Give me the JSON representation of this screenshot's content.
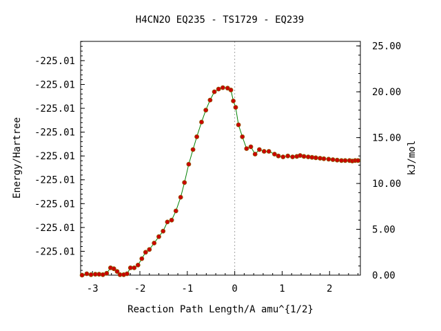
{
  "chart_data": {
    "type": "line",
    "title": "H4CN2O   EQ235 - TS1729 - EQ239",
    "xlabel": "Reaction Path Length/A amu^{1/2}",
    "ylabel": "Energy/Hartree",
    "ylabel_right": "kJ/mol",
    "xlim": [
      -3.25,
      2.65
    ],
    "ylim_right": [
      0,
      25.5
    ],
    "grid": false,
    "x_ticks": [
      {
        "value": -3,
        "label": "-3"
      },
      {
        "value": -2,
        "label": "-2"
      },
      {
        "value": -1,
        "label": "-1"
      },
      {
        "value": 0,
        "label": "0"
      },
      {
        "value": 1,
        "label": "1"
      },
      {
        "value": 2,
        "label": "2"
      }
    ],
    "y_left_ticks": [
      {
        "value": 2.6,
        "label": "-225.01"
      },
      {
        "value": 5.2,
        "label": "-225.01"
      },
      {
        "value": 7.8,
        "label": "-225.01"
      },
      {
        "value": 10.4,
        "label": "-225.01"
      },
      {
        "value": 13.0,
        "label": "-225.01"
      },
      {
        "value": 15.6,
        "label": "-225.01"
      },
      {
        "value": 18.2,
        "label": "-225.01"
      },
      {
        "value": 20.8,
        "label": "-225.01"
      },
      {
        "value": 23.4,
        "label": "-225.01"
      }
    ],
    "y_right_ticks": [
      {
        "value": 0,
        "label": "0.00"
      },
      {
        "value": 5,
        "label": "5.00"
      },
      {
        "value": 10,
        "label": "10.00"
      },
      {
        "value": 15,
        "label": "15.00"
      },
      {
        "value": 20,
        "label": "20.00"
      },
      {
        "value": 25,
        "label": "25.00"
      }
    ],
    "ts_x": 0,
    "colors": {
      "line": "#008000",
      "marker_fill": "#cc0000",
      "marker_edge": "#8b5a00",
      "ts_line": "#a0a0a0"
    },
    "series": [
      {
        "x": [
          -3.22,
          -3.12,
          -3.03,
          -2.94,
          -2.86,
          -2.78,
          -2.7,
          -2.62,
          -2.55,
          -2.48,
          -2.42,
          -2.34,
          -2.27,
          -2.2,
          -2.12,
          -2.04,
          -1.96,
          -1.88,
          -1.8,
          -1.7,
          -1.6,
          -1.51,
          -1.42,
          -1.33,
          -1.24,
          -1.14,
          -1.06,
          -0.97,
          -0.88,
          -0.8,
          -0.7,
          -0.61,
          -0.52,
          -0.43,
          -0.34,
          -0.25,
          -0.15,
          -0.08,
          -0.03,
          0.02,
          0.08,
          0.16,
          0.25,
          0.34,
          0.43,
          0.52,
          0.62,
          0.72,
          0.84,
          0.92,
          1.02,
          1.12,
          1.22,
          1.31,
          1.38,
          1.46,
          1.55,
          1.63,
          1.71,
          1.8,
          1.88,
          1.98,
          2.07,
          2.16,
          2.25,
          2.33,
          2.42,
          2.48,
          2.54,
          2.6
        ],
        "values": [
          0.0,
          0.15,
          0.05,
          0.1,
          0.1,
          0.05,
          0.2,
          0.8,
          0.7,
          0.4,
          0.05,
          0.05,
          0.15,
          0.8,
          0.8,
          1.1,
          1.8,
          2.5,
          2.8,
          3.5,
          4.2,
          4.8,
          5.8,
          6.0,
          7.0,
          8.5,
          10.1,
          12.1,
          13.7,
          15.1,
          16.7,
          18.0,
          19.1,
          20.0,
          20.3,
          20.45,
          20.4,
          20.2,
          19.0,
          18.3,
          16.4,
          15.1,
          13.8,
          14.0,
          13.2,
          13.7,
          13.5,
          13.5,
          13.2,
          13.0,
          12.9,
          13.0,
          12.9,
          12.95,
          13.05,
          12.95,
          12.9,
          12.85,
          12.8,
          12.75,
          12.7,
          12.65,
          12.6,
          12.55,
          12.5,
          12.5,
          12.5,
          12.45,
          12.5,
          12.5
        ]
      }
    ]
  }
}
